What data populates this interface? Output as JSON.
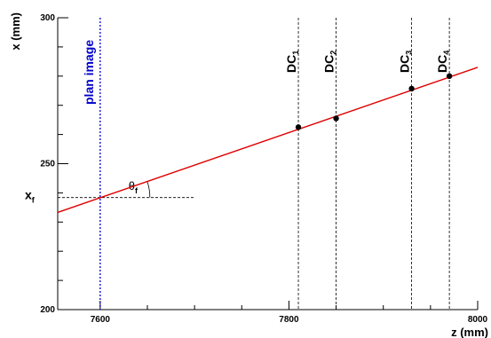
{
  "chart_data": {
    "type": "line",
    "xlabel": "z (mm)",
    "ylabel": "x (mm)",
    "xlim": [
      7555,
      8000
    ],
    "ylim": [
      200,
      300
    ],
    "x_ticks": [
      7600,
      7800,
      8000
    ],
    "y_ticks": [
      200,
      250,
      300
    ],
    "x_ticks_text": [
      "7600",
      "7800",
      "8000"
    ],
    "y_ticks_text": [
      "200",
      "250",
      "300"
    ],
    "x_minor_step": 50,
    "y_minor_step": 10,
    "grid": false,
    "line_color": "#e00000",
    "fit_line": {
      "x": [
        7555,
        8000
      ],
      "y": [
        233.3,
        283.0
      ]
    },
    "points": [
      {
        "x": 7810,
        "y": 262.5
      },
      {
        "x": 7850,
        "y": 265.5
      },
      {
        "x": 7930,
        "y": 275.7
      },
      {
        "x": 7970,
        "y": 280.0
      }
    ],
    "detector_lines": [
      {
        "z": 7810,
        "main": "DC",
        "sub": "1"
      },
      {
        "z": 7850,
        "main": "DC",
        "sub": "2"
      },
      {
        "z": 7930,
        "main": "DC",
        "sub": "3"
      },
      {
        "z": 7970,
        "main": "DC",
        "sub": "4"
      }
    ],
    "plan_image": {
      "z": 7600,
      "label": "plan image",
      "color": "#0000cc"
    },
    "xf_marker": {
      "y": 238.4,
      "x_end": 7700,
      "label_main": "x",
      "label_sub": "f"
    },
    "angle_marker": {
      "label_main": "θ",
      "label_sub": "f",
      "label_x": 7630,
      "label_y": 241
    }
  }
}
